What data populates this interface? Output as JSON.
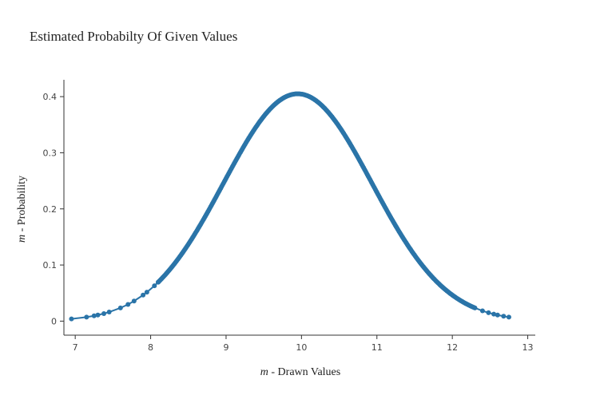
{
  "chart_data": {
    "type": "line",
    "title": "Estimated Probabilty Of Given Values",
    "xlabel_var": "m",
    "xlabel_text": " - Drawn Values",
    "ylabel_var": "m",
    "ylabel_text": " - Probability",
    "xlim": [
      6.85,
      13.1
    ],
    "ylim": [
      -0.025,
      0.43
    ],
    "x_ticks": [
      7,
      8,
      9,
      10,
      11,
      12,
      13
    ],
    "y_ticks": [
      0,
      0.1,
      0.2,
      0.3,
      0.4
    ],
    "y_tick_labels": [
      "0",
      "0.1",
      "0.2",
      "0.3",
      "0.4"
    ],
    "grid": false,
    "series": [
      {
        "mean": 9.95,
        "std": 0.985,
        "x_min": 6.95,
        "x_max": 12.75,
        "sparse_points": [
          6.95,
          7.15,
          7.25,
          7.3,
          7.38,
          7.45,
          7.6,
          7.7,
          7.78,
          7.9,
          7.95,
          8.05,
          8.1,
          12.3,
          12.4,
          12.48,
          12.55,
          12.6,
          12.68,
          12.75
        ],
        "color": "#2a74a8"
      }
    ]
  }
}
